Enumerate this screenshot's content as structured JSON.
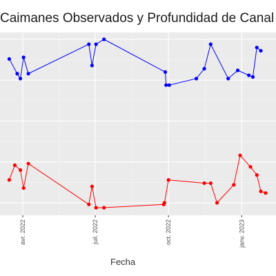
{
  "chart_data": {
    "type": "line",
    "title": "Caimanes Observados y Profundidad de Canal",
    "xlabel": "Fecha",
    "ylabel": "",
    "x_ticks": [
      {
        "date": "2022-04-01",
        "label": "avr. 2022"
      },
      {
        "date": "2022-07-01",
        "label": "juil. 2022"
      },
      {
        "date": "2022-10-01",
        "label": "oct. 2022"
      },
      {
        "date": "2023-01-01",
        "label": "janv. 2023"
      }
    ],
    "grid": true,
    "legend": "none",
    "series": [
      {
        "color": "#0000ff",
        "points": [
          {
            "x": "2022-03-15",
            "y": 0.88
          },
          {
            "x": "2022-03-25",
            "y": 0.79
          },
          {
            "x": "2022-03-29",
            "y": 0.76
          },
          {
            "x": "2022-04-02",
            "y": 0.89
          },
          {
            "x": "2022-04-08",
            "y": 0.79
          },
          {
            "x": "2022-06-23",
            "y": 0.97
          },
          {
            "x": "2022-06-27",
            "y": 0.84
          },
          {
            "x": "2022-07-02",
            "y": 0.97
          },
          {
            "x": "2022-07-12",
            "y": 1.0
          },
          {
            "x": "2022-09-27",
            "y": 0.8
          },
          {
            "x": "2022-09-28",
            "y": 0.72
          },
          {
            "x": "2022-10-02",
            "y": 0.72
          },
          {
            "x": "2022-11-05",
            "y": 0.76
          },
          {
            "x": "2022-11-15",
            "y": 0.82
          },
          {
            "x": "2022-11-23",
            "y": 0.97
          },
          {
            "x": "2022-12-15",
            "y": 0.76
          },
          {
            "x": "2022-12-27",
            "y": 0.81
          },
          {
            "x": "2023-01-10",
            "y": 0.78
          },
          {
            "x": "2023-01-15",
            "y": 0.77
          },
          {
            "x": "2023-01-20",
            "y": 0.95
          },
          {
            "x": "2023-01-25",
            "y": 0.93
          }
        ]
      },
      {
        "color": "#ff0000",
        "points": [
          {
            "x": "2022-03-15",
            "y": 0.14
          },
          {
            "x": "2022-03-22",
            "y": 0.23
          },
          {
            "x": "2022-03-29",
            "y": 0.2
          },
          {
            "x": "2022-04-02",
            "y": 0.09
          },
          {
            "x": "2022-04-08",
            "y": 0.24
          },
          {
            "x": "2022-06-23",
            "y": -0.01
          },
          {
            "x": "2022-06-27",
            "y": 0.1
          },
          {
            "x": "2022-07-02",
            "y": -0.03
          },
          {
            "x": "2022-07-12",
            "y": -0.03
          },
          {
            "x": "2022-09-25",
            "y": -0.01
          },
          {
            "x": "2022-09-26",
            "y": 0.0
          },
          {
            "x": "2022-10-01",
            "y": 0.14
          },
          {
            "x": "2022-11-15",
            "y": 0.12
          },
          {
            "x": "2022-11-23",
            "y": 0.12
          },
          {
            "x": "2022-12-01",
            "y": 0.0
          },
          {
            "x": "2022-12-22",
            "y": 0.11
          },
          {
            "x": "2022-12-30",
            "y": 0.29
          },
          {
            "x": "2023-01-12",
            "y": 0.22
          },
          {
            "x": "2023-01-20",
            "y": 0.17
          },
          {
            "x": "2023-01-25",
            "y": 0.07
          },
          {
            "x": "2023-01-31",
            "y": 0.06
          }
        ]
      }
    ]
  }
}
